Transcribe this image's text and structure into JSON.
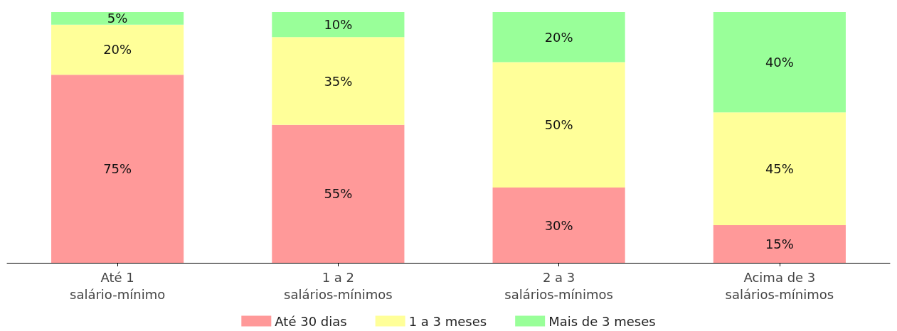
{
  "chart_data": {
    "type": "bar",
    "stacked": true,
    "categories": [
      "Até 1\nsalário-mínimo",
      "1 a 2\nsalários-mínimos",
      "2 a 3\nsalários-mínimos",
      "Acima de 3\nsalários-mínimos"
    ],
    "series": [
      {
        "name": "Até 30 dias",
        "color": "#ff9999",
        "values": [
          75,
          55,
          30,
          15
        ],
        "value_labels": [
          "75%",
          "55%",
          "30%",
          "15%"
        ]
      },
      {
        "name": "1 a 3 meses",
        "color": "#ffff99",
        "values": [
          20,
          35,
          50,
          45
        ],
        "value_labels": [
          "20%",
          "35%",
          "50%",
          "45%"
        ]
      },
      {
        "name": "Mais de 3 meses",
        "color": "#99ff99",
        "values": [
          5,
          10,
          20,
          40
        ],
        "value_labels": [
          "5%",
          "10%",
          "20%",
          "40%"
        ]
      }
    ],
    "legend": "bottom",
    "grid": false
  }
}
